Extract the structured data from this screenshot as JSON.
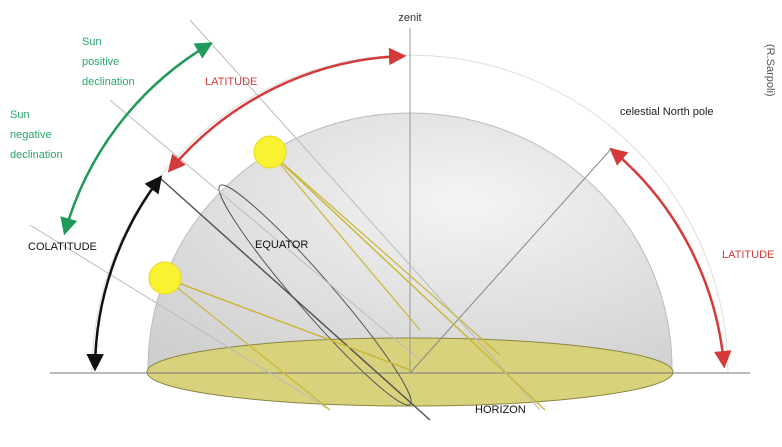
{
  "labels": {
    "zenit": "zenit",
    "sun_positive": [
      "Sun",
      "positive",
      "declination"
    ],
    "sun_negative": [
      "Sun",
      "negative",
      "declination"
    ],
    "latitude_top": "LATITUDE",
    "celestial_north_pole": "celestial North pole",
    "credit": "(R.Sarpoli)",
    "latitude_right": "LATITUDE",
    "colatitude": "COLATITUDE",
    "equator": "EQUATOR",
    "horizon": "HORIZON"
  }
}
